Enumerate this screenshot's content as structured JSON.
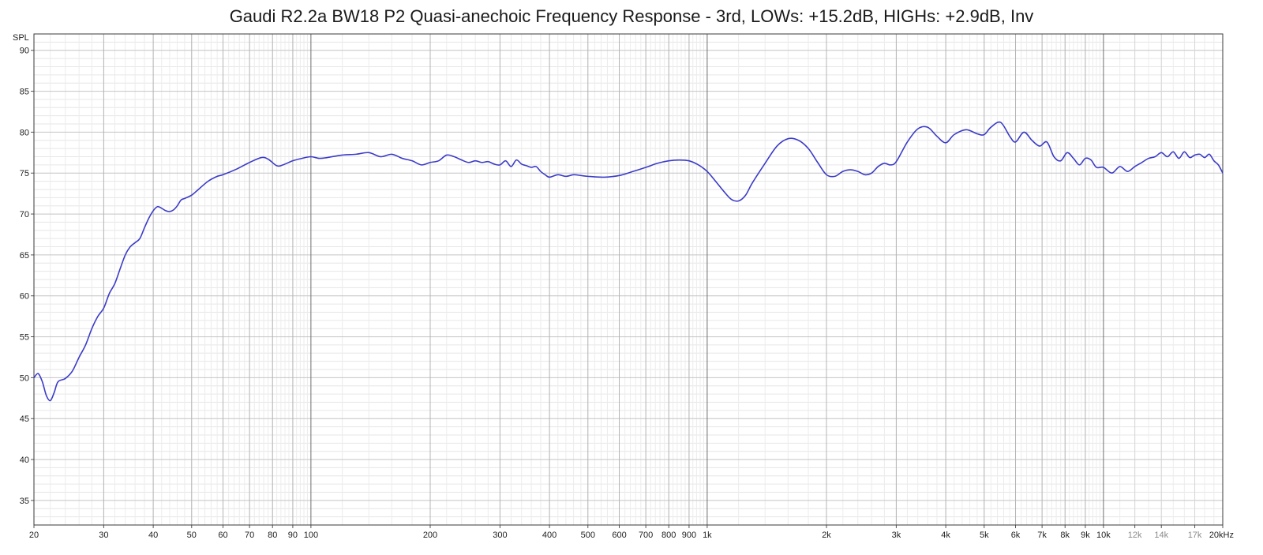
{
  "chart_data": {
    "type": "line",
    "title": "Gaudi R2.2a BW18 P2 Quasi-anechoic Frequency Response - 3rd, LOWs: +15.2dB, HIGHs: +2.9dB, Inv",
    "ylabel": "SPL",
    "x_scale": "log",
    "xlim": [
      20,
      20000
    ],
    "ylim": [
      32,
      92
    ],
    "grid": true,
    "legend": "none",
    "line_color": "#3b3bc8",
    "x_ticks": [
      {
        "value": 20,
        "label": "20",
        "style": "major"
      },
      {
        "value": 30,
        "label": "30",
        "style": "major"
      },
      {
        "value": 40,
        "label": "40",
        "style": "major"
      },
      {
        "value": 50,
        "label": "50",
        "style": "major"
      },
      {
        "value": 60,
        "label": "60",
        "style": "major"
      },
      {
        "value": 70,
        "label": "70",
        "style": "major"
      },
      {
        "value": 80,
        "label": "80",
        "style": "major"
      },
      {
        "value": 90,
        "label": "90",
        "style": "major"
      },
      {
        "value": 100,
        "label": "100",
        "style": "major"
      },
      {
        "value": 200,
        "label": "200",
        "style": "major"
      },
      {
        "value": 300,
        "label": "300",
        "style": "major"
      },
      {
        "value": 400,
        "label": "400",
        "style": "major"
      },
      {
        "value": 500,
        "label": "500",
        "style": "major"
      },
      {
        "value": 600,
        "label": "600",
        "style": "major"
      },
      {
        "value": 700,
        "label": "700",
        "style": "major"
      },
      {
        "value": 800,
        "label": "800",
        "style": "major"
      },
      {
        "value": 900,
        "label": "900",
        "style": "major"
      },
      {
        "value": 1000,
        "label": "1k",
        "style": "major"
      },
      {
        "value": 2000,
        "label": "2k",
        "style": "major"
      },
      {
        "value": 3000,
        "label": "3k",
        "style": "major"
      },
      {
        "value": 4000,
        "label": "4k",
        "style": "major"
      },
      {
        "value": 5000,
        "label": "5k",
        "style": "major"
      },
      {
        "value": 6000,
        "label": "6k",
        "style": "major"
      },
      {
        "value": 7000,
        "label": "7k",
        "style": "major"
      },
      {
        "value": 8000,
        "label": "8k",
        "style": "major"
      },
      {
        "value": 9000,
        "label": "9k",
        "style": "major"
      },
      {
        "value": 10000,
        "label": "10k",
        "style": "major"
      },
      {
        "value": 12000,
        "label": "12k",
        "style": "minor"
      },
      {
        "value": 14000,
        "label": "14k",
        "style": "minor"
      },
      {
        "value": 17000,
        "label": "17k",
        "style": "minor"
      },
      {
        "value": 20000,
        "label": "20kHz",
        "style": "major"
      }
    ],
    "y_ticks": [
      {
        "value": 35,
        "label": "35"
      },
      {
        "value": 40,
        "label": "40"
      },
      {
        "value": 45,
        "label": "45"
      },
      {
        "value": 50,
        "label": "50"
      },
      {
        "value": 55,
        "label": "55"
      },
      {
        "value": 60,
        "label": "60"
      },
      {
        "value": 65,
        "label": "65"
      },
      {
        "value": 70,
        "label": "70"
      },
      {
        "value": 75,
        "label": "75"
      },
      {
        "value": 80,
        "label": "80"
      },
      {
        "value": 85,
        "label": "85"
      },
      {
        "value": 90,
        "label": "90"
      }
    ],
    "series": [
      {
        "x": [
          20,
          20.5,
          21,
          21.5,
          22,
          22.5,
          23,
          24,
          25,
          26,
          27,
          28,
          29,
          30,
          31,
          32,
          33,
          34,
          35,
          36,
          37,
          38,
          39,
          40,
          41,
          42,
          43,
          44,
          45,
          46,
          47,
          48,
          50,
          52,
          55,
          58,
          60,
          65,
          70,
          75,
          78,
          82,
          85,
          90,
          95,
          100,
          105,
          110,
          120,
          130,
          140,
          150,
          160,
          170,
          180,
          190,
          200,
          210,
          220,
          230,
          240,
          250,
          260,
          270,
          280,
          290,
          300,
          310,
          320,
          330,
          340,
          350,
          360,
          370,
          380,
          390,
          400,
          420,
          440,
          460,
          480,
          500,
          550,
          600,
          650,
          700,
          750,
          800,
          850,
          900,
          950,
          1000,
          1050,
          1100,
          1150,
          1200,
          1250,
          1300,
          1400,
          1500,
          1600,
          1700,
          1800,
          1900,
          2000,
          2100,
          2200,
          2300,
          2400,
          2500,
          2600,
          2700,
          2800,
          2900,
          3000,
          3200,
          3400,
          3600,
          3800,
          4000,
          4200,
          4500,
          4800,
          5000,
          5200,
          5500,
          5800,
          6000,
          6300,
          6600,
          6900,
          7200,
          7500,
          7800,
          8100,
          8400,
          8700,
          9000,
          9300,
          9600,
          10000,
          10500,
          11000,
          11500,
          12000,
          12500,
          13000,
          13500,
          14000,
          14500,
          15000,
          15500,
          16000,
          16500,
          17000,
          17500,
          18000,
          18500,
          19000,
          19500,
          20000
        ],
        "y": [
          50.0,
          50.5,
          49.5,
          47.8,
          47.2,
          48.2,
          49.5,
          49.9,
          50.8,
          52.5,
          54.0,
          56.0,
          57.5,
          58.5,
          60.3,
          61.5,
          63.3,
          65.0,
          66.0,
          66.5,
          67.0,
          68.3,
          69.5,
          70.4,
          70.9,
          70.7,
          70.4,
          70.3,
          70.5,
          71.0,
          71.7,
          71.9,
          72.3,
          73.0,
          74.0,
          74.6,
          74.8,
          75.5,
          76.3,
          76.9,
          76.7,
          75.9,
          76.0,
          76.5,
          76.8,
          77.0,
          76.8,
          76.9,
          77.2,
          77.3,
          77.5,
          77.0,
          77.3,
          76.8,
          76.5,
          76.0,
          76.3,
          76.5,
          77.2,
          77.0,
          76.6,
          76.3,
          76.5,
          76.3,
          76.4,
          76.1,
          76.0,
          76.5,
          75.8,
          76.6,
          76.1,
          75.9,
          75.7,
          75.8,
          75.2,
          74.8,
          74.5,
          74.8,
          74.6,
          74.8,
          74.7,
          74.6,
          74.5,
          74.7,
          75.2,
          75.7,
          76.2,
          76.5,
          76.6,
          76.5,
          76.0,
          75.2,
          74.0,
          72.8,
          71.8,
          71.6,
          72.3,
          73.8,
          76.2,
          78.3,
          79.2,
          79.0,
          78.0,
          76.3,
          74.8,
          74.6,
          75.2,
          75.4,
          75.2,
          74.8,
          75.0,
          75.8,
          76.2,
          76.0,
          76.4,
          78.8,
          80.4,
          80.6,
          79.5,
          78.7,
          79.7,
          80.3,
          79.8,
          79.7,
          80.6,
          81.2,
          79.5,
          78.8,
          80.0,
          79.0,
          78.3,
          78.8,
          77.0,
          76.5,
          77.5,
          76.8,
          76.0,
          76.8,
          76.6,
          75.7,
          75.7,
          75.0,
          75.8,
          75.2,
          75.8,
          76.3,
          76.8,
          77.0,
          77.5,
          77.0,
          77.6,
          76.8,
          77.6,
          76.9,
          77.2,
          77.3,
          76.9,
          77.3,
          76.5,
          76.0,
          75.0
        ]
      }
    ]
  }
}
